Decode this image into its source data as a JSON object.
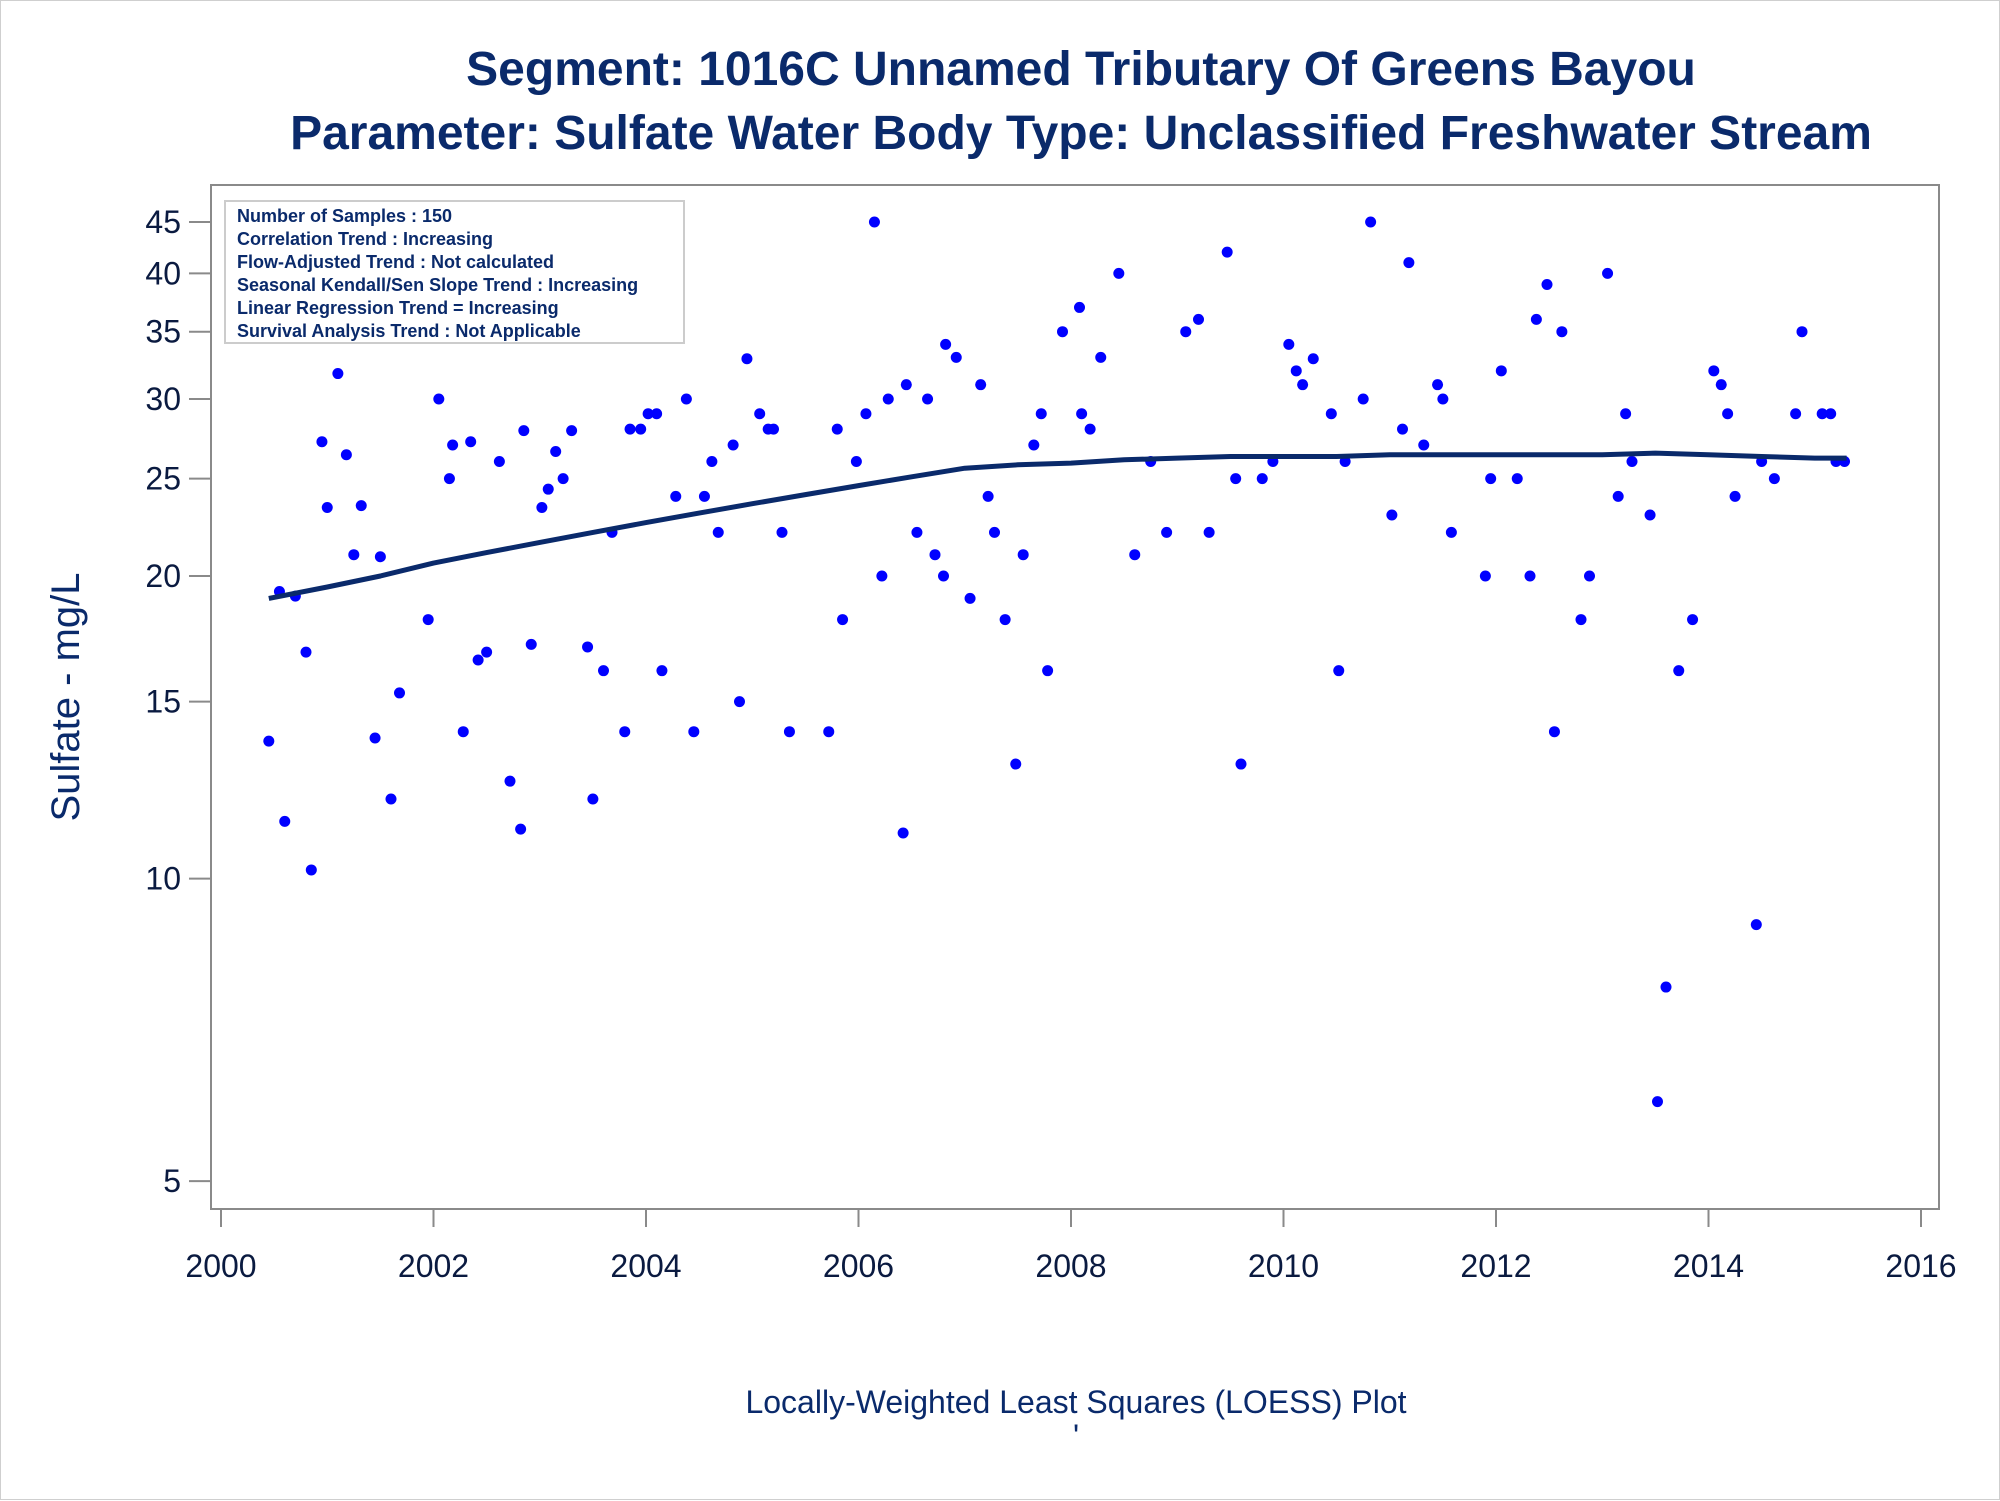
{
  "chart_data": {
    "type": "scatter",
    "title": "Segment: 1016C  Unnamed Tributary Of Greens Bayou",
    "subtitle": "Parameter: Sulfate   Water Body Type: Unclassified Freshwater Stream",
    "ylabel": "Sulfate - mg/L",
    "xlabel": "",
    "footnote": "Locally-Weighted Least Squares (LOESS) Plot",
    "footnote2": "'",
    "y_scale": "log",
    "xlim": [
      2000,
      2016
    ],
    "ylim": [
      4.8,
      47
    ],
    "x_ticks": [
      2000,
      2002,
      2004,
      2006,
      2008,
      2010,
      2012,
      2014,
      2016
    ],
    "y_ticks": [
      5,
      10,
      15,
      20,
      25,
      30,
      35,
      40,
      45
    ],
    "grid": false,
    "legend": "none",
    "colors": {
      "points": "#0000ff",
      "loess": "#0a2a6b",
      "text": "#0a2a6b",
      "axis": "#8a8a8a"
    },
    "info_box": {
      "position": "top-left",
      "lines": [
        "Number of Samples : 150",
        "Correlation Trend : Increasing",
        "Flow-Adjusted Trend : Not calculated",
        "Seasonal Kendall/Sen Slope Trend : Increasing",
        "Linear Regression Trend = Increasing",
        "Survival Analysis Trend : Not Applicable"
      ]
    },
    "series": [
      {
        "type": "scatter",
        "x": [
          2000.45,
          2000.55,
          2000.6,
          2000.7,
          2000.8,
          2000.85,
          2000.95,
          2001.0,
          2001.1,
          2001.18,
          2001.25,
          2001.32,
          2001.45,
          2001.5,
          2001.6,
          2001.68,
          2001.95,
          2002.05,
          2002.15,
          2002.18,
          2002.28,
          2002.35,
          2002.42,
          2002.5,
          2002.62,
          2002.72,
          2002.82,
          2002.85,
          2002.92,
          2003.02,
          2003.08,
          2003.15,
          2003.22,
          2003.3,
          2003.45,
          2003.5,
          2003.6,
          2003.68,
          2003.8,
          2003.85,
          2003.95,
          2004.02,
          2004.1,
          2004.15,
          2004.28,
          2004.38,
          2004.45,
          2004.55,
          2004.62,
          2004.68,
          2004.82,
          2004.88,
          2004.95,
          2005.07,
          2005.15,
          2005.2,
          2005.28,
          2005.35,
          2005.72,
          2005.8,
          2005.85,
          2005.98,
          2006.07,
          2006.15,
          2006.22,
          2006.28,
          2006.42,
          2006.45,
          2006.55,
          2006.65,
          2006.72,
          2006.8,
          2006.82,
          2006.92,
          2007.05,
          2007.15,
          2007.22,
          2007.28,
          2007.38,
          2007.48,
          2007.55,
          2007.65,
          2007.72,
          2007.78,
          2007.92,
          2008.08,
          2008.1,
          2008.18,
          2008.28,
          2008.45,
          2008.6,
          2008.75,
          2008.9,
          2009.08,
          2009.2,
          2009.3,
          2009.47,
          2009.55,
          2009.6,
          2009.8,
          2009.9,
          2010.05,
          2010.12,
          2010.18,
          2010.28,
          2010.45,
          2010.52,
          2010.58,
          2010.75,
          2010.82,
          2011.02,
          2011.12,
          2011.18,
          2011.32,
          2011.45,
          2011.5,
          2011.58,
          2011.9,
          2011.95,
          2012.05,
          2012.2,
          2012.32,
          2012.38,
          2012.48,
          2012.55,
          2012.62,
          2012.8,
          2012.88,
          2013.05,
          2013.15,
          2013.22,
          2013.28,
          2013.45,
          2013.52,
          2013.6,
          2013.72,
          2013.85,
          2014.05,
          2014.12,
          2014.18,
          2014.25,
          2014.45,
          2014.5,
          2014.62,
          2014.82,
          2014.88,
          2015.07,
          2015.15,
          2015.2,
          2015.28
        ],
        "y": [
          13.7,
          19.3,
          11.4,
          19.1,
          16.8,
          10.2,
          27.2,
          23.4,
          31.8,
          26.4,
          21.0,
          23.5,
          13.8,
          20.9,
          12.0,
          15.3,
          18.1,
          30.0,
          25.0,
          27.0,
          14.0,
          27.2,
          16.5,
          16.8,
          26.0,
          12.5,
          11.2,
          27.9,
          17.1,
          23.4,
          24.4,
          26.6,
          25.0,
          27.9,
          17.0,
          12.0,
          16.1,
          22.1,
          14.0,
          28.0,
          28.0,
          29.0,
          29.0,
          16.1,
          24.0,
          30.0,
          14.0,
          24.0,
          26.0,
          22.1,
          27.0,
          15.0,
          32.9,
          29.0,
          28.0,
          28.0,
          22.1,
          14.0,
          14.0,
          28.0,
          18.1,
          26.0,
          29.0,
          45.0,
          20.0,
          30.0,
          11.1,
          31.0,
          22.1,
          30.0,
          21.0,
          20.0,
          34.0,
          33.0,
          19.0,
          31.0,
          24.0,
          22.1,
          18.1,
          13.0,
          21.0,
          27.0,
          29.0,
          16.1,
          35.0,
          37.0,
          29.0,
          28.0,
          33.0,
          40.0,
          21.0,
          26.0,
          22.1,
          35.0,
          36.0,
          22.1,
          42.0,
          25.0,
          13.0,
          25.0,
          26.0,
          34.0,
          32.0,
          31.0,
          32.9,
          29.0,
          16.1,
          26.0,
          30.0,
          45.0,
          23.0,
          28.0,
          41.0,
          27.0,
          31.0,
          30.0,
          22.1,
          20.0,
          25.0,
          32.0,
          25.0,
          20.0,
          36.0,
          39.0,
          14.0,
          35.0,
          18.1,
          20.0,
          40.0,
          24.0,
          29.0,
          26.0,
          23.0,
          6.0,
          7.8,
          16.1,
          18.1,
          32.0,
          31.0,
          29.0,
          24.0,
          9.0,
          26.0,
          25.0,
          29.0,
          35.0,
          29.0,
          29.0,
          26.0,
          26.0
        ]
      },
      {
        "type": "line",
        "name": "",
        "x": [
          2000.45,
          2001.0,
          2001.5,
          2002.0,
          2002.5,
          2003.0,
          2003.5,
          2004.0,
          2004.5,
          2005.0,
          2005.5,
          2006.0,
          2006.5,
          2007.0,
          2007.5,
          2008.0,
          2008.5,
          2009.0,
          2009.5,
          2010.0,
          2010.5,
          2011.0,
          2011.5,
          2012.0,
          2012.5,
          2013.0,
          2013.5,
          2014.0,
          2014.5,
          2015.0,
          2015.3
        ],
        "y": [
          19.0,
          19.5,
          20.0,
          20.6,
          21.1,
          21.6,
          22.1,
          22.6,
          23.1,
          23.6,
          24.1,
          24.6,
          25.1,
          25.6,
          25.8,
          25.9,
          26.1,
          26.2,
          26.3,
          26.3,
          26.3,
          26.4,
          26.4,
          26.4,
          26.4,
          26.4,
          26.5,
          26.4,
          26.3,
          26.2,
          26.2
        ]
      }
    ]
  }
}
